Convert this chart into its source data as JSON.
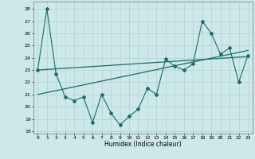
{
  "xlabel": "Humidex (Indice chaleur)",
  "background_color": "#cde8e8",
  "grid_color": "#b8d8d8",
  "line_color": "#1a6b6b",
  "xlim": [
    -0.5,
    23.5
  ],
  "ylim": [
    17.8,
    28.6
  ],
  "xticks": [
    0,
    1,
    2,
    3,
    4,
    5,
    6,
    7,
    8,
    9,
    10,
    11,
    12,
    13,
    14,
    15,
    16,
    17,
    18,
    19,
    20,
    21,
    22,
    23
  ],
  "yticks": [
    18,
    19,
    20,
    21,
    22,
    23,
    24,
    25,
    26,
    27,
    28
  ],
  "jagged_x": [
    0,
    1,
    2,
    3,
    4,
    5,
    6,
    7,
    8,
    9,
    10,
    11,
    12,
    13,
    14,
    15,
    16,
    17,
    18,
    19,
    20,
    21,
    22,
    23
  ],
  "jagged_y": [
    23,
    28,
    22.7,
    20.8,
    20.5,
    20.8,
    18.7,
    21.0,
    19.5,
    18.5,
    19.2,
    19.8,
    21.5,
    21.0,
    23.9,
    23.3,
    23.0,
    23.5,
    27.0,
    26.0,
    24.3,
    24.8,
    22.0,
    24.2
  ],
  "trend1_x": [
    0,
    23
  ],
  "trend1_y": [
    23.0,
    24.1
  ],
  "trend2_x": [
    0,
    23
  ],
  "trend2_y": [
    21.0,
    24.6
  ]
}
